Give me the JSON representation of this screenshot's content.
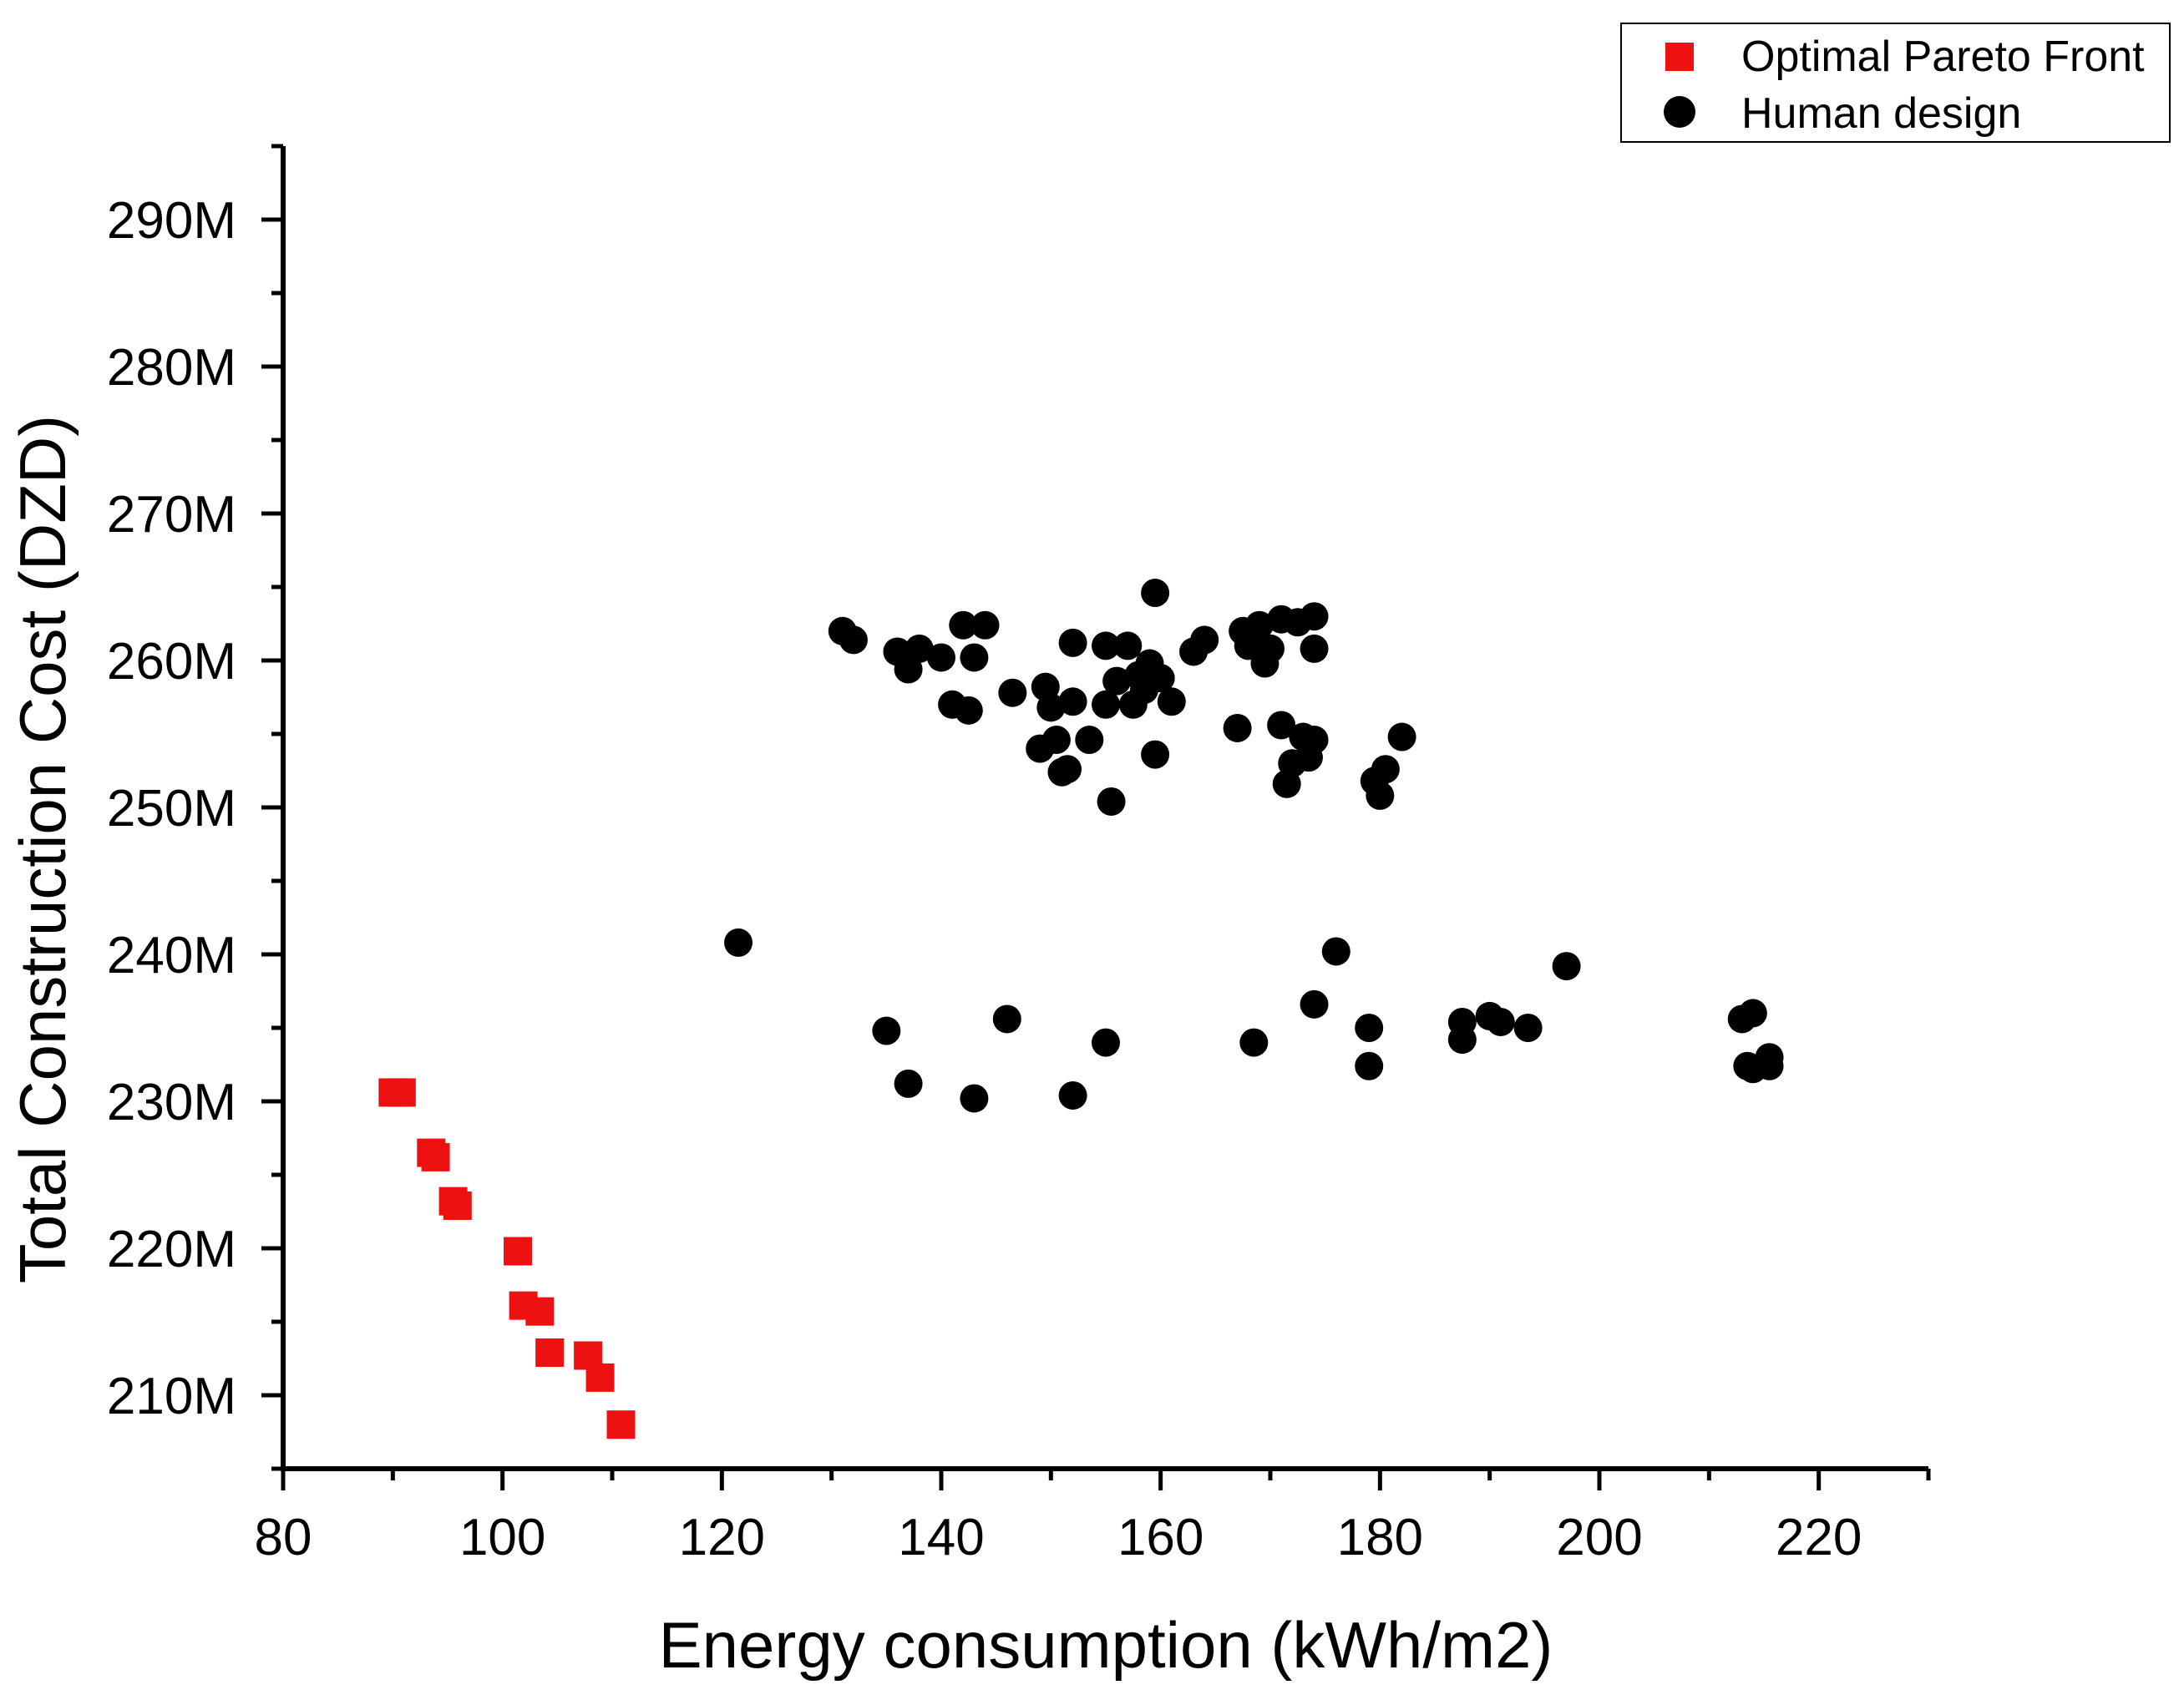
{
  "chart_data": {
    "type": "scatter",
    "title": "",
    "xlabel": "Energy consumption (kWh/m2)",
    "ylabel": "Total Construction Cost (DZD)",
    "xlim": [
      80,
      230
    ],
    "ylim": [
      205,
      295
    ],
    "xticks": [
      80,
      100,
      120,
      140,
      160,
      180,
      200,
      220
    ],
    "xtick_labels": [
      "80",
      "100",
      "120",
      "140",
      "160",
      "180",
      "200",
      "220"
    ],
    "yticks": [
      210,
      220,
      230,
      240,
      250,
      260,
      270,
      280,
      290
    ],
    "ytick_labels": [
      "210M",
      "220M",
      "230M",
      "240M",
      "250M",
      "260M",
      "270M",
      "280M",
      "290M"
    ],
    "grid": false,
    "legend_position": "top-right",
    "series": [
      {
        "name": "Optimal Pareto Front",
        "marker": "square",
        "color": "#ee1111",
        "x": [
          90.0,
          90.8,
          93.5,
          93.9,
          95.5,
          95.9,
          101.4,
          101.9,
          103.4,
          104.3,
          107.8,
          108.9,
          110.8
        ],
        "y": [
          230.6,
          230.6,
          226.5,
          226.2,
          223.2,
          222.9,
          219.8,
          216.1,
          215.7,
          212.9,
          212.7,
          211.2,
          208.0
        ]
      },
      {
        "name": "Human design",
        "marker": "circle",
        "color": "#000000",
        "x": [
          131,
          132,
          136,
          137,
          138,
          140,
          141,
          142,
          142.5,
          143,
          144,
          146.5,
          149,
          149.5,
          150,
          150.5,
          151,
          151.5,
          152,
          152,
          153.5,
          155,
          155,
          155.5,
          156,
          157,
          157.5,
          158,
          158.5,
          159,
          159.5,
          160,
          161,
          163,
          164,
          167,
          167.5,
          168,
          169,
          169.5,
          170,
          171,
          171,
          171.5,
          172,
          172.5,
          173,
          173.5,
          174,
          174,
          174,
          179.5,
          180,
          180.5,
          182,
          159.5,
          121.5,
          135,
          137,
          143,
          146,
          152,
          155,
          168.5,
          174,
          176,
          179,
          179,
          187.5,
          187.5,
          190,
          191,
          193.5,
          197,
          213,
          213.5,
          214,
          214,
          215.5,
          215.5
        ],
        "y": [
          262.0,
          261.4,
          260.6,
          259.4,
          260.8,
          260.2,
          257.0,
          262.4,
          256.6,
          260.2,
          262.4,
          257.8,
          254.0,
          258.2,
          256.8,
          254.6,
          252.4,
          252.6,
          257.2,
          261.2,
          254.6,
          257.0,
          261.0,
          250.4,
          258.6,
          261.0,
          257.0,
          259.0,
          258.0,
          259.8,
          264.6,
          258.8,
          257.2,
          260.6,
          261.4,
          255.4,
          262.0,
          261.0,
          262.4,
          259.8,
          260.8,
          262.8,
          255.6,
          251.6,
          253.0,
          262.6,
          254.8,
          253.4,
          263.0,
          260.8,
          254.6,
          251.8,
          250.8,
          252.6,
          254.8,
          253.6,
          240.8,
          234.8,
          231.2,
          230.2,
          235.6,
          230.4,
          234.0,
          234.0,
          236.6,
          240.2,
          235.0,
          232.4,
          235.4,
          234.2,
          235.8,
          235.4,
          235.0,
          239.2,
          235.6,
          232.4,
          236.0,
          232.2,
          232.4,
          233.0
        ]
      }
    ]
  }
}
